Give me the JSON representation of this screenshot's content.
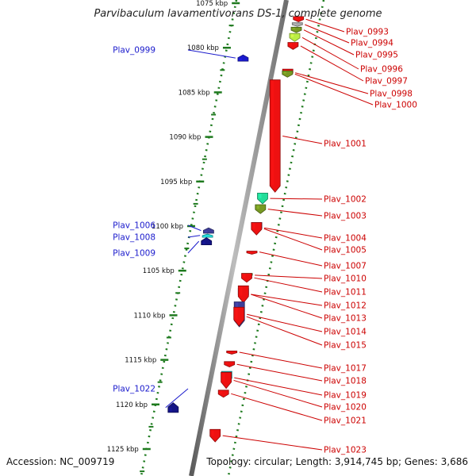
{
  "title": "Parvibaculum lavamentivorans DS-1, complete genome",
  "accession": "Accession: NC_009719",
  "topology": "Topology: circular; Length: 3,914,745 bp; Genes: 3,686",
  "colors": {
    "backbone": "#8c8c8c",
    "tick": "#1e7a1e",
    "forward_label": "#1a1acc",
    "reverse_label": "#cc0000"
  },
  "ruler": {
    "labels": [
      "1075 kbp",
      "1080 kbp",
      "1085 kbp",
      "1090 kbp",
      "1095 kbp",
      "1100 kbp",
      "1105 kbp",
      "1110 kbp",
      "1115 kbp",
      "1120 kbp",
      "1125 kbp"
    ]
  },
  "forward_genes": [
    {
      "name": "Plav_0999",
      "start_kbp": 1080.8,
      "end_kbp": 1081.5,
      "color": "#1a1acc"
    },
    {
      "name": "Plav_1006",
      "start_kbp": 1100.2,
      "end_kbp": 1100.8,
      "color": "#3d3d99"
    },
    {
      "name": "Plav_1008",
      "start_kbp": 1100.9,
      "end_kbp": 1101.2,
      "color": "#22dddd"
    },
    {
      "name": "Plav_1009",
      "start_kbp": 1101.3,
      "end_kbp": 1102.1,
      "color": "#141485"
    },
    {
      "name": "Plav_1022",
      "start_kbp": 1119.8,
      "end_kbp": 1120.9,
      "color": "#141485"
    }
  ],
  "reverse_genes": [
    {
      "name": "Plav_0993",
      "start_kbp": 1076.5,
      "end_kbp": 1077.1,
      "color": "#ee1111"
    },
    {
      "name": "Plav_0994",
      "start_kbp": 1077.2,
      "end_kbp": 1077.6,
      "color": "#aaaaaa"
    },
    {
      "name": "Plav_0995",
      "start_kbp": 1077.7,
      "end_kbp": 1078.3,
      "color": "#779922"
    },
    {
      "name": "Plav_0996",
      "start_kbp": 1078.4,
      "end_kbp": 1079.3,
      "color": "#bbee44"
    },
    {
      "name": "Plav_0997",
      "start_kbp": 1079.4,
      "end_kbp": 1080.2,
      "color": "#ee1111"
    },
    {
      "name": "Plav_0998",
      "start_kbp": 1082.4,
      "end_kbp": 1083.2,
      "color": "#ee1111"
    },
    {
      "name": "Plav_1000",
      "start_kbp": 1082.6,
      "end_kbp": 1083.3,
      "color": "#779922"
    },
    {
      "name": "Plav_1001",
      "start_kbp": 1083.6,
      "end_kbp": 1096.2,
      "color": "#ee1111"
    },
    {
      "name": "Plav_1002",
      "start_kbp": 1096.3,
      "end_kbp": 1097.5,
      "color": "#22dd99"
    },
    {
      "name": "Plav_1003",
      "start_kbp": 1097.6,
      "end_kbp": 1098.6,
      "color": "#779922"
    },
    {
      "name": "Plav_1004",
      "start_kbp": 1099.6,
      "end_kbp": 1100.8,
      "color": "#3d3d99"
    },
    {
      "name": "Plav_1005",
      "start_kbp": 1099.6,
      "end_kbp": 1101.0,
      "color": "#ee1111"
    },
    {
      "name": "Plav_1007",
      "start_kbp": 1102.8,
      "end_kbp": 1103.0,
      "color": "#ee1111"
    },
    {
      "name": "Plav_1010",
      "start_kbp": 1105.3,
      "end_kbp": 1105.7,
      "color": "#33bb33"
    },
    {
      "name": "Plav_1011",
      "start_kbp": 1105.3,
      "end_kbp": 1106.3,
      "color": "#ee1111"
    },
    {
      "name": "Plav_1012",
      "start_kbp": 1107.0,
      "end_kbp": 1108.3,
      "color": "#3d3d99"
    },
    {
      "name": "Plav_1013",
      "start_kbp": 1106.7,
      "end_kbp": 1108.6,
      "color": "#ee1111"
    },
    {
      "name": "Plav_1014",
      "start_kbp": 1108.5,
      "end_kbp": 1111.3,
      "color": "#3d3d99"
    },
    {
      "name": "Plav_1015",
      "start_kbp": 1109.1,
      "end_kbp": 1111.2,
      "color": "#ee1111"
    },
    {
      "name": "Plav_1017",
      "start_kbp": 1114.0,
      "end_kbp": 1114.3,
      "color": "#ee1111"
    },
    {
      "name": "Plav_1018",
      "start_kbp": 1115.2,
      "end_kbp": 1115.8,
      "color": "#ee1111"
    },
    {
      "name": "Plav_1019",
      "start_kbp": 1116.3,
      "end_kbp": 1117.7,
      "color": "#22cccc"
    },
    {
      "name": "Plav_1020",
      "start_kbp": 1116.4,
      "end_kbp": 1118.2,
      "color": "#ee1111"
    },
    {
      "name": "Plav_1021",
      "start_kbp": 1118.4,
      "end_kbp": 1119.2,
      "color": "#ee1111"
    },
    {
      "name": "Plav_1023",
      "start_kbp": 1122.8,
      "end_kbp": 1124.2,
      "color": "#ee1111"
    }
  ]
}
